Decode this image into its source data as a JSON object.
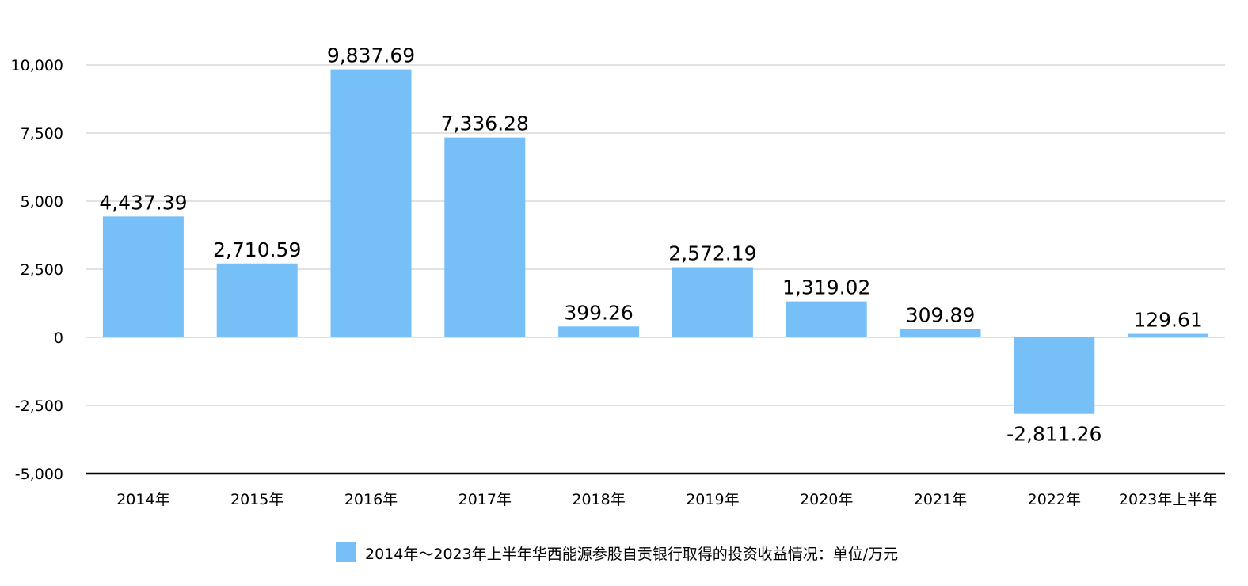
{
  "chart_data": {
    "type": "bar",
    "categories": [
      "2014年",
      "2015年",
      "2016年",
      "2017年",
      "2018年",
      "2019年",
      "2020年",
      "2021年",
      "2022年",
      "2023年上半年"
    ],
    "series": [
      {
        "name": "2014年～2023年上半年华西能源参股自贡银行取得的投资收益情况：单位/万元",
        "values": [
          4437.39,
          2710.59,
          9837.69,
          7336.28,
          399.26,
          2572.19,
          1319.02,
          309.89,
          -2811.26,
          129.61
        ],
        "labels": [
          "4,437.39",
          "2,710.59",
          "9,837.69",
          "7,336.28",
          "399.26",
          "2,572.19",
          "1,319.02",
          "309.89",
          "-2,811.26",
          "129.61"
        ],
        "color": "#76bff7"
      }
    ],
    "ylim": [
      -5000,
      10000
    ],
    "yticks": [
      10000,
      7500,
      5000,
      2500,
      0,
      -2500,
      -5000
    ],
    "ytick_labels": [
      "10,000",
      "7,500",
      "5,000",
      "2,500",
      "0",
      "-2,500",
      "-5,000"
    ],
    "grid": true,
    "gridline_color": "#c4c4c4",
    "axis_color": "#000000",
    "legend_position": "bottom",
    "title": "",
    "xlabel": "",
    "ylabel": ""
  }
}
